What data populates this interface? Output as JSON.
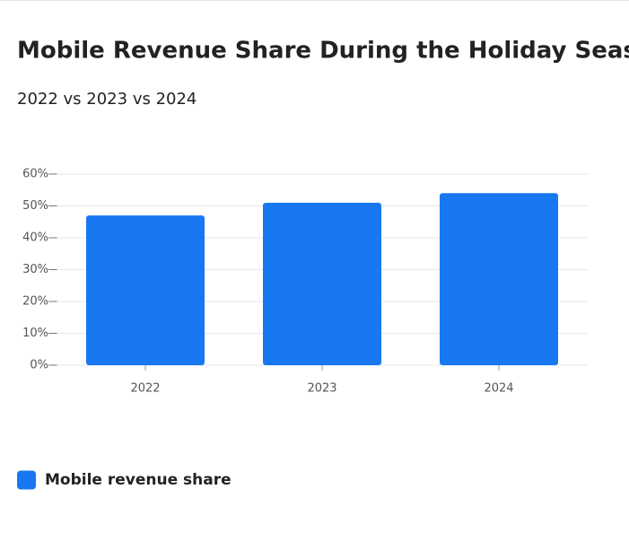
{
  "chart_data": {
    "type": "bar",
    "title": "Mobile Revenue Share During the Holiday Season",
    "subtitle": "2022 vs 2023 vs 2024",
    "categories": [
      "2022",
      "2023",
      "2024"
    ],
    "series": [
      {
        "name": "Mobile revenue share",
        "color": "#1878f2",
        "values": [
          47,
          51,
          54
        ]
      }
    ],
    "ylim": [
      0,
      60
    ],
    "yticks": [
      {
        "value": 0,
        "label": "0%"
      },
      {
        "value": 10,
        "label": "10%"
      },
      {
        "value": 20,
        "label": "20%"
      },
      {
        "value": 30,
        "label": "30%"
      },
      {
        "value": 40,
        "label": "40%"
      },
      {
        "value": 50,
        "label": "50%"
      },
      {
        "value": 60,
        "label": "60%"
      }
    ],
    "grid": true
  }
}
